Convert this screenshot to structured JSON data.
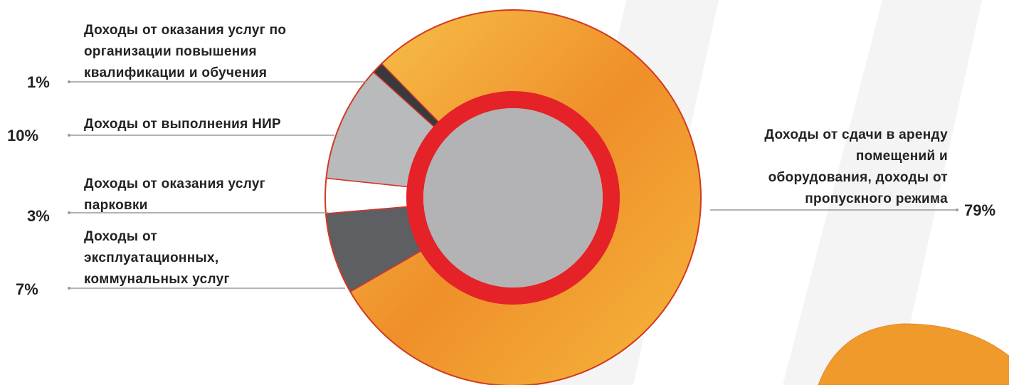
{
  "chart_data": {
    "type": "pie",
    "categories": [
      "Доходы от эксплуатационных, коммунальных услуг",
      "Доходы от оказания услуг парковки",
      "Доходы от выполнения НИР",
      "Доходы от оказания услуг по организации повышения квалификации и обучения",
      "Доходы от сдачи в аренду помещений и оборудования, доходы от пропускного режима"
    ],
    "values": [
      7,
      3,
      10,
      1,
      79
    ],
    "value_labels": [
      "7%",
      "3%",
      "10%",
      "1%",
      "79%"
    ],
    "colors": [
      "#5e5f62",
      "#ffffff",
      "#b9babc",
      "#3a3a3c",
      "#f0a030"
    ]
  }
}
